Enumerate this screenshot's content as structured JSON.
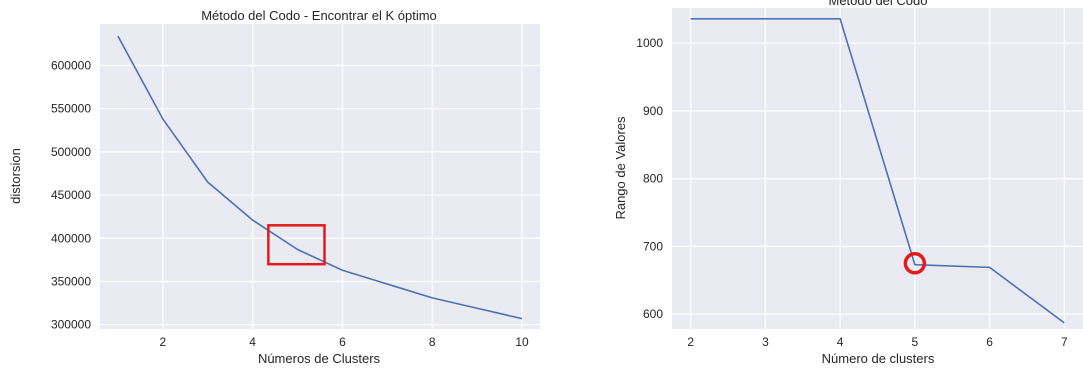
{
  "colors": {
    "series": "#4c72b0",
    "highlight": "#e31a1c",
    "plot_bg": "#eaeaf2"
  },
  "chart_data": [
    {
      "type": "line",
      "title": "Método del Codo - Encontrar el K óptimo",
      "xlabel": "Números de Clusters",
      "ylabel": "distorsion",
      "xlim": [
        0.6,
        10.4
      ],
      "ylim": [
        295000,
        648000
      ],
      "xticks": [
        2,
        4,
        6,
        8,
        10
      ],
      "yticks": [
        300000,
        350000,
        400000,
        450000,
        500000,
        550000,
        600000
      ],
      "x": [
        1,
        2,
        3,
        4,
        5,
        6,
        7,
        8,
        9,
        10
      ],
      "y": [
        634000,
        538000,
        465000,
        421000,
        387000,
        363000,
        347000,
        331000,
        319000,
        307000
      ],
      "grid": true,
      "annotation": {
        "shape": "rectangle",
        "color": "#e31a1c",
        "x_range": [
          4.35,
          5.6
        ],
        "y_range": [
          370000,
          415000
        ]
      }
    },
    {
      "type": "line",
      "title": "Método del Codo",
      "xlabel": "Número de clusters",
      "ylabel": "Rango de Valores",
      "xlim": [
        1.75,
        7.25
      ],
      "ylim": [
        578,
        1052
      ],
      "xticks": [
        2,
        3,
        4,
        5,
        6,
        7
      ],
      "yticks": [
        600,
        700,
        800,
        900,
        1000
      ],
      "x": [
        2,
        3,
        4,
        5,
        6,
        7
      ],
      "y": [
        1036,
        1036,
        1036,
        673,
        669,
        587
      ],
      "grid": true,
      "annotation": {
        "shape": "circle",
        "color": "#e31a1c",
        "x": 5,
        "y": 675
      }
    }
  ]
}
